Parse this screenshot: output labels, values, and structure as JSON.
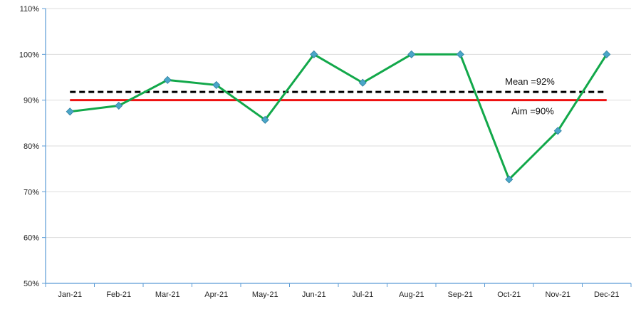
{
  "chart_data": {
    "type": "line",
    "categories": [
      "Jan-21",
      "Feb-21",
      "Mar-21",
      "Apr-21",
      "May-21",
      "Jun-21",
      "Jul-21",
      "Aug-21",
      "Sep-21",
      "Oct-21",
      "Nov-21",
      "Dec-21"
    ],
    "series": [
      {
        "values": [
          87.5,
          88.8,
          94.4,
          93.3,
          85.7,
          100,
          93.8,
          100,
          100,
          72.7,
          83.3,
          100
        ],
        "color": "#12a84a",
        "marker_color": "#4aa6c8",
        "marker": "diamond"
      }
    ],
    "reference_lines": [
      {
        "label": "Mean =92%",
        "value": 91.8,
        "color": "#000000",
        "style": "dashed"
      },
      {
        "label": "Aim =90%",
        "value": 90,
        "color": "#ee1111",
        "style": "solid"
      }
    ],
    "y_ticks": [
      "50%",
      "60%",
      "70%",
      "80%",
      "90%",
      "100%",
      "110%"
    ],
    "ylim": [
      50,
      110
    ],
    "y_unit": "%",
    "grid": "horizontal",
    "legend": "none",
    "axis_color": "#5b9bd5",
    "grid_color": "#dddddd"
  }
}
